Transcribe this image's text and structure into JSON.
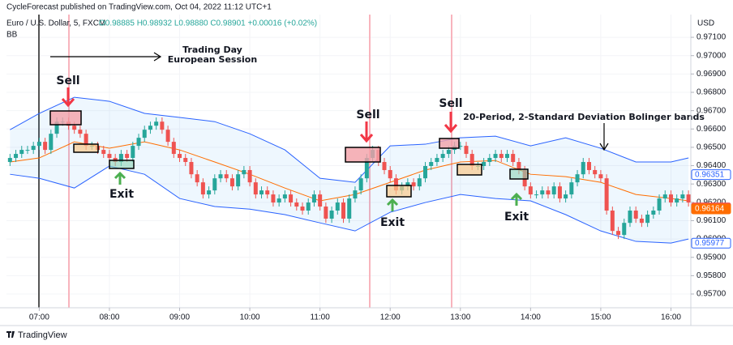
{
  "chart_data": {
    "type": "candlestick",
    "header": "CycleForecast published on TradingView.com, Oct 04, 2022 11:12 UTC+1",
    "symbol": "Euro / U.S. Dollar, 5, FXCM",
    "ohlc_legend": "O0.98885 H0.98932 L0.98880 C0.98901 +0.00016 (+0.02%)",
    "indicator": "BB",
    "currency": "USD",
    "brand": "TradingView",
    "up_color": "#26a69a",
    "down_color": "#ef5350",
    "grid": true,
    "x": [
      "06:35",
      "06:40",
      "06:45",
      "06:50",
      "06:55",
      "07:00",
      "07:05",
      "07:10",
      "07:15",
      "07:20",
      "07:25",
      "07:30",
      "07:35",
      "07:40",
      "07:45",
      "07:50",
      "07:55",
      "08:00",
      "08:05",
      "08:10",
      "08:15",
      "08:20",
      "08:25",
      "08:30",
      "08:35",
      "08:40",
      "08:45",
      "08:50",
      "08:55",
      "09:00",
      "09:05",
      "09:10",
      "09:15",
      "09:20",
      "09:25",
      "09:30",
      "09:35",
      "09:40",
      "09:45",
      "09:50",
      "09:55",
      "10:00",
      "10:05",
      "10:10",
      "10:15",
      "10:20",
      "10:25",
      "10:30",
      "10:35",
      "10:40",
      "10:45",
      "10:50",
      "10:55",
      "11:00",
      "11:05",
      "11:10",
      "11:15",
      "11:20",
      "11:25",
      "11:30",
      "11:35",
      "11:40",
      "11:45",
      "11:50",
      "11:55",
      "12:00",
      "12:05",
      "12:10",
      "12:15",
      "12:20",
      "12:25",
      "12:30",
      "12:35",
      "12:40",
      "12:45",
      "12:50",
      "12:55",
      "13:00",
      "13:05",
      "13:10",
      "13:15",
      "13:20",
      "13:25",
      "13:30",
      "13:35",
      "13:40",
      "13:45",
      "13:50",
      "13:55",
      "14:00",
      "14:05",
      "14:10",
      "14:15",
      "14:20",
      "14:25",
      "14:30",
      "14:35",
      "14:40",
      "14:45",
      "14:50",
      "14:55",
      "15:00",
      "15:05",
      "15:10",
      "15:15",
      "15:20",
      "15:25",
      "15:30",
      "15:35",
      "15:40",
      "15:45",
      "15:50",
      "15:55",
      "16:00",
      "16:05",
      "16:10",
      "16:15"
    ],
    "open": [
      0.9642,
      0.96442,
      0.96464,
      0.96486,
      0.96486,
      0.96508,
      0.9653,
      0.96486,
      0.96574,
      0.9664,
      0.9664,
      0.96618,
      0.96596,
      0.96574,
      0.96508,
      0.96508,
      0.96486,
      0.96464,
      0.96442,
      0.9642,
      0.96464,
      0.96442,
      0.96508,
      0.96552,
      0.96596,
      0.96618,
      0.9664,
      0.96596,
      0.9653,
      0.96464,
      0.96442,
      0.9642,
      0.96353,
      0.96309,
      0.96243,
      0.96265,
      0.96331,
      0.96353,
      0.96331,
      0.96287,
      0.96353,
      0.96376,
      0.96309,
      0.96243,
      0.96265,
      0.96243,
      0.96199,
      0.96221,
      0.96243,
      0.96199,
      0.96177,
      0.96155,
      0.96199,
      0.96243,
      0.96177,
      0.96111,
      0.96155,
      0.96199,
      0.96111,
      0.96221,
      0.96265,
      0.96331,
      0.96442,
      0.96486,
      0.9642,
      0.96376,
      0.96331,
      0.96265,
      0.96287,
      0.96309,
      0.96287,
      0.96331,
      0.96398,
      0.9642,
      0.96442,
      0.96464,
      0.96486,
      0.96508,
      0.96508,
      0.96464,
      0.96398,
      0.96398,
      0.9642,
      0.96442,
      0.96464,
      0.96442,
      0.96464,
      0.9642,
      0.96376,
      0.96287,
      0.96243,
      0.96243,
      0.96265,
      0.96243,
      0.96287,
      0.96221,
      0.96243,
      0.96309,
      0.96353,
      0.9642,
      0.96376,
      0.96353,
      0.96331,
      0.96155,
      0.96044,
      0.96022,
      0.96088,
      0.96155,
      0.96111,
      0.96088,
      0.96133,
      0.96155,
      0.96221,
      0.96243,
      0.96199,
      0.96221,
      0.96243
    ],
    "high": [
      0.96464,
      0.96486,
      0.96508,
      0.96508,
      0.9653,
      0.96552,
      0.96552,
      0.96596,
      0.96663,
      0.96663,
      0.96663,
      0.9664,
      0.96618,
      0.96596,
      0.9653,
      0.9653,
      0.96508,
      0.96486,
      0.96464,
      0.96486,
      0.96486,
      0.9653,
      0.96574,
      0.96618,
      0.9664,
      0.96663,
      0.96663,
      0.96618,
      0.96552,
      0.96486,
      0.96464,
      0.96442,
      0.96376,
      0.96331,
      0.96287,
      0.96353,
      0.96376,
      0.96376,
      0.96353,
      0.96376,
      0.96398,
      0.96398,
      0.96331,
      0.96287,
      0.96287,
      0.96265,
      0.96243,
      0.96265,
      0.96265,
      0.96221,
      0.96199,
      0.96221,
      0.96265,
      0.96265,
      0.96199,
      0.96177,
      0.96221,
      0.96221,
      0.96243,
      0.96287,
      0.96353,
      0.96464,
      0.96508,
      0.96508,
      0.96442,
      0.96398,
      0.96353,
      0.96309,
      0.96331,
      0.96331,
      0.96353,
      0.9642,
      0.96442,
      0.96464,
      0.96486,
      0.96508,
      0.9653,
      0.9653,
      0.9653,
      0.96486,
      0.9642,
      0.96442,
      0.96464,
      0.96486,
      0.96486,
      0.96486,
      0.96486,
      0.96442,
      0.96398,
      0.96309,
      0.96265,
      0.96287,
      0.96287,
      0.96309,
      0.96309,
      0.96265,
      0.96331,
      0.96376,
      0.96442,
      0.96442,
      0.96398,
      0.96376,
      0.96353,
      0.96177,
      0.96066,
      0.96111,
      0.96177,
      0.96177,
      0.96133,
      0.96155,
      0.96177,
      0.96243,
      0.96265,
      0.96265,
      0.96243,
      0.96265,
      0.96265
    ],
    "low": [
      0.96398,
      0.9642,
      0.96442,
      0.96464,
      0.96464,
      0.96486,
      0.96464,
      0.96464,
      0.96552,
      0.96618,
      0.96596,
      0.96574,
      0.96552,
      0.96486,
      0.96486,
      0.96464,
      0.96442,
      0.9642,
      0.96398,
      0.96398,
      0.9642,
      0.9642,
      0.96486,
      0.9653,
      0.96574,
      0.96596,
      0.96574,
      0.96508,
      0.96442,
      0.9642,
      0.96398,
      0.96331,
      0.96287,
      0.96221,
      0.96221,
      0.96243,
      0.96309,
      0.96309,
      0.96265,
      0.96265,
      0.96331,
      0.96287,
      0.96221,
      0.96221,
      0.96221,
      0.96177,
      0.96177,
      0.96199,
      0.96177,
      0.96155,
      0.96133,
      0.96133,
      0.96177,
      0.96155,
      0.96088,
      0.96088,
      0.96133,
      0.96088,
      0.96088,
      0.96199,
      0.96243,
      0.96309,
      0.9642,
      0.96398,
      0.96353,
      0.96309,
      0.96243,
      0.96243,
      0.96265,
      0.96265,
      0.96265,
      0.96309,
      0.96376,
      0.96398,
      0.9642,
      0.96442,
      0.96464,
      0.96486,
      0.96442,
      0.96376,
      0.96376,
      0.96376,
      0.96398,
      0.9642,
      0.9642,
      0.9642,
      0.96398,
      0.96353,
      0.96265,
      0.96221,
      0.96221,
      0.96221,
      0.96221,
      0.96221,
      0.96199,
      0.96199,
      0.96221,
      0.96287,
      0.96331,
      0.96353,
      0.96331,
      0.96309,
      0.96133,
      0.96022,
      0.96,
      0.96,
      0.96066,
      0.96088,
      0.96066,
      0.96066,
      0.96111,
      0.96133,
      0.96199,
      0.96177,
      0.96177,
      0.96199,
      0.96177
    ],
    "close": [
      0.96442,
      0.96464,
      0.96486,
      0.96486,
      0.96508,
      0.9653,
      0.96486,
      0.96574,
      0.9664,
      0.9664,
      0.96618,
      0.96596,
      0.96574,
      0.96508,
      0.96508,
      0.96486,
      0.96464,
      0.96442,
      0.9642,
      0.96464,
      0.96442,
      0.96508,
      0.96552,
      0.96596,
      0.96618,
      0.9664,
      0.96596,
      0.9653,
      0.96464,
      0.96442,
      0.9642,
      0.96353,
      0.96309,
      0.96243,
      0.96265,
      0.96331,
      0.96353,
      0.96331,
      0.96287,
      0.96353,
      0.96376,
      0.96309,
      0.96243,
      0.96265,
      0.96243,
      0.96199,
      0.96221,
      0.96243,
      0.96199,
      0.96177,
      0.96155,
      0.96199,
      0.96243,
      0.96177,
      0.96111,
      0.96155,
      0.96199,
      0.96111,
      0.96221,
      0.96265,
      0.96331,
      0.96442,
      0.96486,
      0.9642,
      0.96376,
      0.96331,
      0.96265,
      0.96287,
      0.96309,
      0.96287,
      0.96331,
      0.96398,
      0.9642,
      0.96442,
      0.96464,
      0.96486,
      0.96508,
      0.96508,
      0.96464,
      0.96398,
      0.96398,
      0.9642,
      0.96442,
      0.96464,
      0.96442,
      0.96464,
      0.9642,
      0.96376,
      0.96287,
      0.96243,
      0.96243,
      0.96265,
      0.96243,
      0.96287,
      0.96221,
      0.96243,
      0.96309,
      0.96353,
      0.9642,
      0.96376,
      0.96353,
      0.96331,
      0.96155,
      0.96044,
      0.96022,
      0.96088,
      0.96155,
      0.96111,
      0.96088,
      0.96133,
      0.96155,
      0.96221,
      0.96243,
      0.96199,
      0.96221,
      0.96243,
      0.96199
    ],
    "bands": {
      "x": [
        "06:35",
        "07:00",
        "07:30",
        "08:00",
        "08:30",
        "09:00",
        "09:30",
        "10:00",
        "10:30",
        "11:00",
        "11:30",
        "12:00",
        "12:30",
        "13:00",
        "13:30",
        "14:00",
        "14:30",
        "15:00",
        "15:30",
        "16:00",
        "16:15"
      ],
      "upper": [
        0.96596,
        0.96685,
        0.96773,
        0.96751,
        0.96685,
        0.96663,
        0.9664,
        0.96574,
        0.96486,
        0.96331,
        0.96309,
        0.96508,
        0.96517,
        0.96552,
        0.96561,
        0.96508,
        0.96552,
        0.96495,
        0.9642,
        0.9642,
        0.96442
      ],
      "basis": [
        0.9642,
        0.96442,
        0.9653,
        0.96495,
        0.9653,
        0.96486,
        0.9642,
        0.96353,
        0.96278,
        0.96208,
        0.96243,
        0.96309,
        0.96376,
        0.9642,
        0.96428,
        0.96353,
        0.9634,
        0.96309,
        0.96243,
        0.96221,
        0.96208
      ],
      "lower": [
        0.96353,
        0.96331,
        0.96278,
        0.96398,
        0.96353,
        0.96221,
        0.96177,
        0.96163,
        0.96133,
        0.96088,
        0.96044,
        0.96146,
        0.96199,
        0.96243,
        0.96221,
        0.96208,
        0.96133,
        0.96044,
        0.95987,
        0.95978,
        0.96
      ],
      "band_color": "#2962ff",
      "basis_color": "#ff6d00",
      "fill": "#2196f3"
    },
    "price_tags": [
      {
        "value": 0.96351,
        "label": "0.96351",
        "color": "#2962ff"
      },
      {
        "value": 0.9617,
        "label": "0.96170",
        "color": "#ef5350"
      },
      {
        "value": 0.96164,
        "label": "0.96164",
        "color": "#ff6d00"
      },
      {
        "value": 0.95977,
        "label": "0.95977",
        "color": "#2962ff"
      }
    ],
    "xlim": [
      "06:32",
      "16:17"
    ],
    "xticks": [
      "07:00",
      "08:00",
      "09:00",
      "10:00",
      "11:00",
      "12:00",
      "13:00",
      "14:00",
      "15:00",
      "16:00"
    ],
    "ylim": [
      0.95625,
      0.97224
    ],
    "yticks": [
      {
        "value": 0.957,
        "label": "0.95700"
      },
      {
        "value": 0.958,
        "label": "0.95800"
      },
      {
        "value": 0.959,
        "label": "0.95900"
      },
      {
        "value": 0.96,
        "label": "0.96000"
      },
      {
        "value": 0.961,
        "label": "0.96100"
      },
      {
        "value": 0.962,
        "label": "0.96200"
      },
      {
        "value": 0.963,
        "label": "0.96300"
      },
      {
        "value": 0.964,
        "label": "0.96400"
      },
      {
        "value": 0.965,
        "label": "0.96500"
      },
      {
        "value": 0.966,
        "label": "0.96600"
      },
      {
        "value": 0.967,
        "label": "0.96700"
      },
      {
        "value": 0.968,
        "label": "0.96800"
      },
      {
        "value": 0.969,
        "label": "0.96900"
      },
      {
        "value": 0.97,
        "label": "0.97000"
      },
      {
        "value": 0.971,
        "label": "0.97100"
      }
    ],
    "annotations": {
      "trading_day": "Trading Day",
      "session": "European Session",
      "sell": [
        "Sell",
        "Sell",
        "Sell"
      ],
      "exit": [
        "Exit",
        "Exit",
        "Exit"
      ],
      "bb_note": "20-Period, 2-Standard Deviation Bolinger bands"
    }
  }
}
